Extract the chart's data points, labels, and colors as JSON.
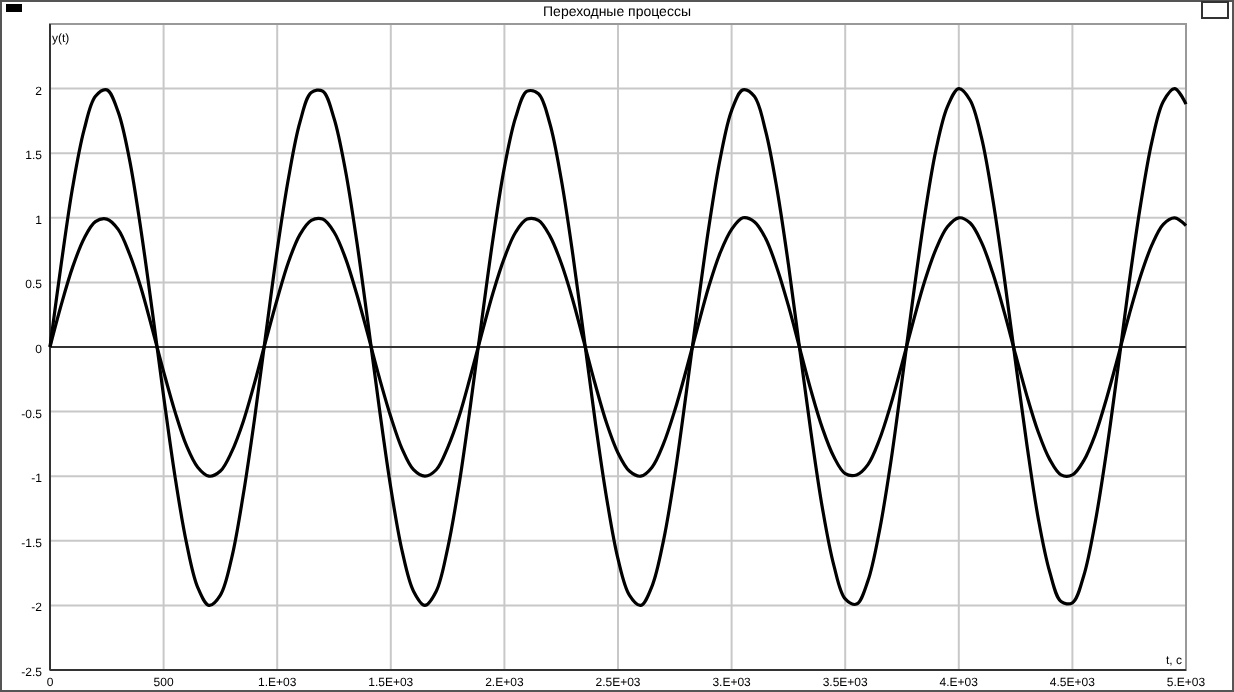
{
  "chart_data": {
    "type": "line",
    "title": "Переходные процессы",
    "xlabel": "t, c",
    "ylabel": "y(t)",
    "x": [
      0,
      50,
      100,
      150,
      200,
      250,
      300,
      350,
      400,
      450,
      500,
      550,
      600,
      650,
      700,
      750,
      800,
      850,
      900,
      950,
      1000,
      1050,
      1100,
      1150,
      1200,
      1250,
      1300,
      1350,
      1400,
      1450,
      1500,
      1550,
      1600,
      1650,
      1700,
      1750,
      1800,
      1850,
      1900,
      1950,
      2000,
      2050,
      2100,
      2150,
      2200,
      2250,
      2300,
      2350,
      2400,
      2450,
      2500,
      2550,
      2600,
      2650,
      2700,
      2750,
      2800,
      2850,
      2900,
      2950,
      3000,
      3050,
      3100,
      3150,
      3200,
      3250,
      3300,
      3350,
      3400,
      3450,
      3500,
      3550,
      3600,
      3650,
      3700,
      3750,
      3800,
      3850,
      3900,
      3950,
      4000,
      4050,
      4100,
      4150,
      4200,
      4250,
      4300,
      4350,
      4400,
      4450,
      4500,
      4550,
      4600,
      4650,
      4700,
      4750,
      4800,
      4850,
      4900,
      4950,
      5000
    ],
    "series": [
      {
        "color": "#000000",
        "values": [
          0,
          0.33,
          0.62,
          0.84,
          0.97,
          0.99,
          0.91,
          0.72,
          0.46,
          0.14,
          -0.19,
          -0.5,
          -0.76,
          -0.93,
          -1,
          -0.96,
          -0.81,
          -0.58,
          -0.28,
          0.05,
          0.37,
          0.66,
          0.87,
          0.98,
          0.99,
          0.89,
          0.69,
          0.41,
          0.09,
          -0.24,
          -0.54,
          -0.79,
          -0.95,
          -1,
          -0.95,
          -0.78,
          -0.54,
          -0.23,
          0.1,
          0.42,
          0.69,
          0.89,
          0.99,
          0.98,
          0.86,
          0.65,
          0.37,
          0.04,
          -0.29,
          -0.59,
          -0.82,
          -0.96,
          -1,
          -0.93,
          -0.75,
          -0.49,
          -0.18,
          0.15,
          0.47,
          0.73,
          0.91,
          1,
          0.97,
          0.84,
          0.61,
          0.32,
          -0.01,
          -0.34,
          -0.63,
          -0.85,
          -0.98,
          -0.99,
          -0.91,
          -0.72,
          -0.45,
          -0.13,
          0.2,
          0.51,
          0.76,
          0.93,
          1,
          0.96,
          0.81,
          0.57,
          0.27,
          -0.06,
          -0.38,
          -0.66,
          -0.87,
          -0.99,
          -0.99,
          -0.88,
          -0.68,
          -0.4,
          -0.08,
          0.25,
          0.55,
          0.79,
          0.95,
          1,
          0.94
        ]
      },
      {
        "color": "#000000",
        "values": [
          0,
          0.65,
          1.24,
          1.68,
          1.94,
          1.99,
          1.82,
          1.45,
          0.91,
          0.28,
          -0.38,
          -1,
          -1.51,
          -1.86,
          -2,
          -1.92,
          -1.63,
          -1.15,
          -0.56,
          0.1,
          0.75,
          1.31,
          1.74,
          1.97,
          1.98,
          1.77,
          1.37,
          0.82,
          0.18,
          -0.48,
          -1.09,
          -1.58,
          -1.89,
          -2,
          -1.89,
          -1.56,
          -1.07,
          -0.46,
          0.2,
          0.84,
          1.39,
          1.78,
          1.98,
          1.96,
          1.73,
          1.3,
          0.73,
          0.08,
          -0.58,
          -1.17,
          -1.64,
          -1.92,
          -2,
          -1.85,
          -1.5,
          -0.99,
          -0.36,
          0.3,
          0.93,
          1.46,
          1.83,
          1.99,
          1.94,
          1.67,
          1.22,
          0.64,
          -0.02,
          -0.67,
          -1.25,
          -1.69,
          -1.95,
          -1.99,
          -1.81,
          -1.43,
          -0.9,
          -0.26,
          0.4,
          1.02,
          1.53,
          1.86,
          2,
          1.91,
          1.62,
          1.14,
          0.54,
          -0.12,
          -0.76,
          -1.33,
          -1.74,
          -1.97,
          -1.98,
          -1.77,
          -1.36,
          -0.81,
          -0.17,
          0.5,
          1.1,
          1.59,
          1.9,
          2,
          1.88
        ]
      }
    ],
    "xlim": [
      0,
      5000
    ],
    "xticks": [
      0,
      500,
      {
        "value": 1000,
        "label": "1.E+03"
      },
      {
        "value": 1500,
        "label": "1.5E+03"
      },
      {
        "value": 2000,
        "label": "2.E+03"
      },
      {
        "value": 2500,
        "label": "2.5E+03"
      },
      {
        "value": 3000,
        "label": "3.E+03"
      },
      {
        "value": 3500,
        "label": "3.5E+03"
      },
      {
        "value": 4000,
        "label": "4.E+03"
      },
      {
        "value": 4500,
        "label": "4.5E+03"
      },
      {
        "value": 5000,
        "label": "5.E+03"
      }
    ],
    "ylim": [
      -2.5,
      2.5
    ],
    "yticks": [
      -2.5,
      -2,
      -1.5,
      -1,
      -0.5,
      0,
      0.5,
      1,
      1.5,
      2
    ],
    "grid": true,
    "marker": "none",
    "line_style": "solid"
  }
}
